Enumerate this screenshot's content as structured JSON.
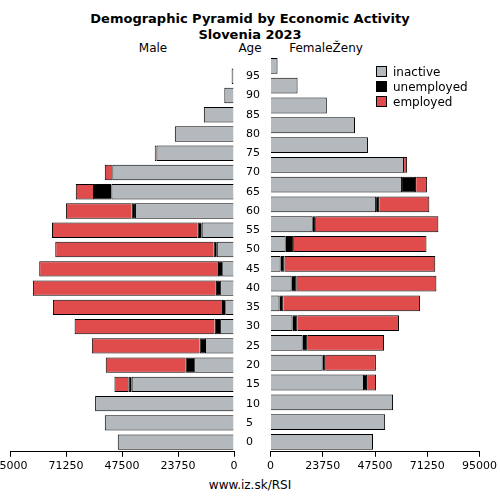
{
  "chart_data": {
    "type": "bar",
    "title": "Demographic Pyramid by Economic Activity",
    "subtitle": "Slovenia 2023",
    "orientation": "horizontal",
    "stacked": true,
    "grid": false,
    "legend": "upper right",
    "ylabel": "Age",
    "source": "www.iz.sk/RSI",
    "categories": [
      0,
      5,
      10,
      15,
      20,
      25,
      30,
      35,
      40,
      45,
      50,
      55,
      60,
      65,
      70,
      75,
      80,
      85,
      90,
      95
    ],
    "xlim": [
      0,
      95000
    ],
    "xticks": [
      0,
      23750,
      47500,
      71250,
      95000
    ],
    "panels": [
      {
        "name": "Male",
        "series": [
          {
            "name": "inactive",
            "color": "#b4b9be",
            "values": [
              49300,
              54800,
              58900,
              43400,
              16900,
              12300,
              5900,
              3700,
              5900,
              5000,
              7300,
              13700,
              42000,
              52000,
              51600,
              32900,
              25100,
              12800,
              4100,
              1000
            ]
          },
          {
            "name": "unemployed",
            "color": "#000000",
            "values": [
              0,
              0,
              0,
              1400,
              3700,
              2300,
              2300,
              1400,
              1800,
              1800,
              1400,
              1800,
              1400,
              7800,
              0,
              0,
              0,
              0,
              0,
              0
            ]
          },
          {
            "name": "employed",
            "color": "#e04b4b",
            "values": [
              0,
              0,
              0,
              5900,
              33800,
              45700,
              59400,
              71700,
              77600,
              75800,
              67100,
              61700,
              27900,
              7300,
              3200,
              700,
              0,
              0,
              0,
              0
            ]
          }
        ]
      },
      {
        "name": "FemaleŽeny",
        "series": [
          {
            "name": "inactive",
            "color": "#b4b9be",
            "values": [
              46600,
              52100,
              55700,
              42500,
              23700,
              14600,
              10000,
              4100,
              9600,
              4600,
              6900,
              19200,
              48000,
              59800,
              60700,
              44300,
              38400,
              25600,
              12300,
              3200
            ]
          },
          {
            "name": "unemployed",
            "color": "#000000",
            "values": [
              0,
              0,
              0,
              1400,
              1400,
              2300,
              2300,
              1800,
              2300,
              1800,
              3700,
              1400,
              1400,
              6400,
              0,
              0,
              0,
              0,
              0,
              0
            ]
          },
          {
            "name": "employed",
            "color": "#e04b4b",
            "values": [
              0,
              0,
              0,
              4100,
              22800,
              34700,
              46100,
              62100,
              63500,
              68500,
              60300,
              55700,
              22800,
              5000,
              1400,
              0,
              0,
              0,
              0,
              0
            ]
          }
        ]
      }
    ]
  }
}
